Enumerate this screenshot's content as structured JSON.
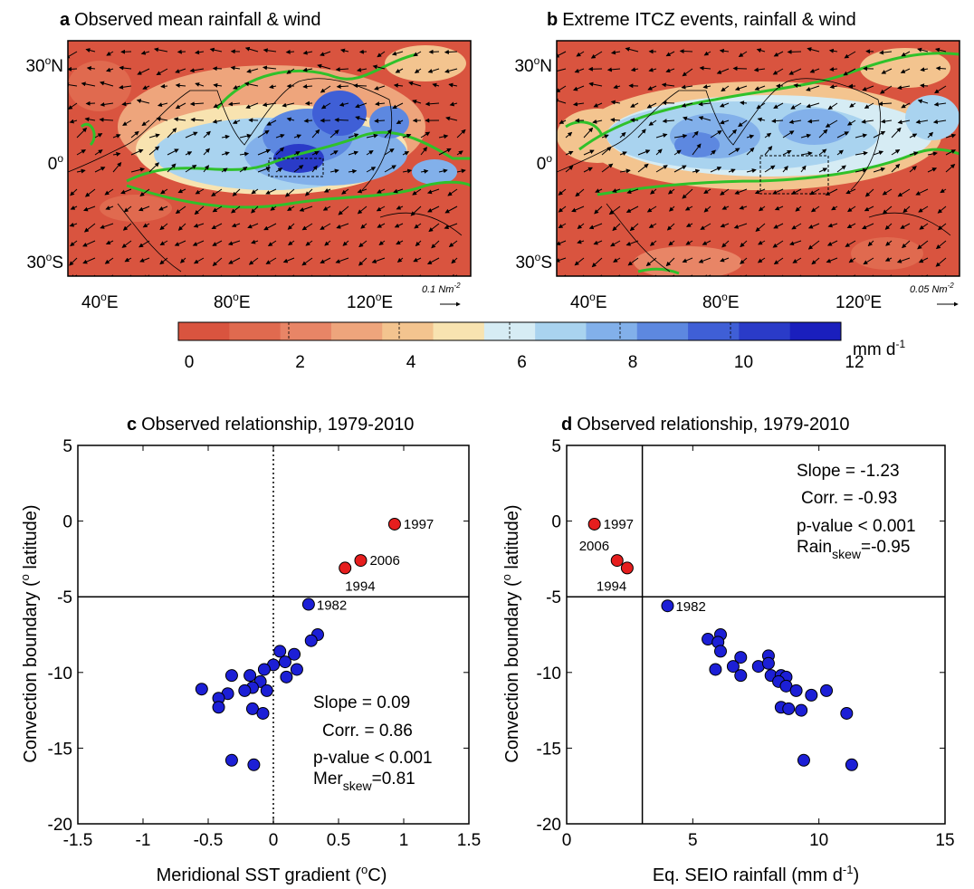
{
  "colors": {
    "rain_scale": [
      "#d9543f",
      "#e06a4f",
      "#e88566",
      "#eea57c",
      "#f3c48f",
      "#f8e3b0",
      "#d6ecf4",
      "#a9d3ef",
      "#82b0ea",
      "#5d88e0",
      "#3f5fd6",
      "#2a3bc8",
      "#1a1fbd"
    ],
    "green_contour": "#2fc12a",
    "red_point": "#e61e1e",
    "blue_point": "#1c1fd6"
  },
  "panel_a": {
    "letter": "a",
    "title": "Observed mean rainfall & wind",
    "lat_labels": [
      "30",
      "0",
      "30"
    ],
    "lat_suffix": [
      "N",
      "",
      "S"
    ],
    "lon_labels": [
      "40",
      "80",
      "120"
    ],
    "deg": "o",
    "east": "E",
    "ref_vector": "0.1 Nm",
    "ref_vector_exp": "-2"
  },
  "panel_b": {
    "letter": "b",
    "title": "Extreme ITCZ events, rainfall & wind",
    "lat_labels": [
      "30",
      "0",
      "30"
    ],
    "lat_suffix": [
      "N",
      "",
      "S"
    ],
    "lon_labels": [
      "40",
      "80",
      "120"
    ],
    "deg": "o",
    "east": "E",
    "ref_vector": "0.05 Nm",
    "ref_vector_exp": "-2"
  },
  "colorbar": {
    "ticks": [
      "0",
      "2",
      "4",
      "6",
      "8",
      "10",
      "12"
    ],
    "unit": "mm d",
    "unit_exp": "-1"
  },
  "chart_data": [
    {
      "type": "scatter",
      "panel": "c",
      "title": "Observed relationship, 1979-2010",
      "xlabel": "Meridional SST gradient (",
      "xlabel_sup": "o",
      "xlabel_end": "C)",
      "ylabel": "Convection boundary (",
      "ylabel_sup": "o",
      "ylabel_end": " latitude)",
      "xlim": [
        -1.5,
        1.5
      ],
      "ylim": [
        -20,
        5
      ],
      "xticks": [
        "-1.5",
        "-1",
        "-0.5",
        "0",
        "0.5",
        "1",
        "1.5"
      ],
      "yticks": [
        "-20",
        "-15",
        "-10",
        "-5",
        "0",
        "5"
      ],
      "hline": -5,
      "vline": 0,
      "vline_style": "dotted",
      "stats": {
        "slope": "Slope = 0.09",
        "corr": "Corr. = 0.86",
        "pvalue": "p-value < 0.001",
        "skew_name": "Mer",
        "skew_sub": "skew",
        "skew_val": "=0.81"
      },
      "extreme_points": [
        {
          "x": 0.93,
          "y": -0.2,
          "label": "1997"
        },
        {
          "x": 0.67,
          "y": -2.6,
          "label": "2006"
        },
        {
          "x": 0.55,
          "y": -3.1,
          "label": "1994"
        }
      ],
      "labeled_blue": [
        {
          "x": 0.27,
          "y": -5.5,
          "label": "1982"
        }
      ],
      "points": [
        [
          0.34,
          -7.5
        ],
        [
          0.29,
          -7.9
        ],
        [
          0.16,
          -8.8
        ],
        [
          0.05,
          -8.6
        ],
        [
          0.09,
          -9.3
        ],
        [
          0.0,
          -9.5
        ],
        [
          0.18,
          -9.8
        ],
        [
          0.1,
          -10.3
        ],
        [
          -0.07,
          -9.8
        ],
        [
          -0.18,
          -10.2
        ],
        [
          -0.32,
          -10.2
        ],
        [
          -0.1,
          -10.6
        ],
        [
          -0.16,
          -11.0
        ],
        [
          -0.05,
          -11.2
        ],
        [
          -0.22,
          -11.2
        ],
        [
          -0.35,
          -11.4
        ],
        [
          -0.42,
          -11.7
        ],
        [
          -0.55,
          -11.1
        ],
        [
          -0.42,
          -12.3
        ],
        [
          -0.16,
          -12.4
        ],
        [
          -0.08,
          -12.7
        ],
        [
          -0.32,
          -15.8
        ],
        [
          -0.15,
          -16.1
        ]
      ]
    },
    {
      "type": "scatter",
      "panel": "d",
      "title": "Observed relationship, 1979-2010",
      "xlabel": "Eq. SEIO rainfall (mm d",
      "xlabel_sup": "-1",
      "xlabel_end": ")",
      "ylabel": "Convection boundary (",
      "ylabel_sup": "o",
      "ylabel_end": " latitude)",
      "xlim": [
        0,
        15
      ],
      "ylim": [
        -20,
        5
      ],
      "xticks": [
        "0",
        "5",
        "10",
        "15"
      ],
      "yticks": [
        "-20",
        "-15",
        "-10",
        "-5",
        "0",
        "5"
      ],
      "hline": -5,
      "vline": 3,
      "vline_style": "solid",
      "stats": {
        "slope": "Slope = -1.23",
        "corr": "Corr. = -0.93",
        "pvalue": "p-value < 0.001",
        "skew_name": "Rain",
        "skew_sub": "skew",
        "skew_val": "=-0.95"
      },
      "extreme_points": [
        {
          "x": 1.1,
          "y": -0.2,
          "label": "1997"
        },
        {
          "x": 2.0,
          "y": -2.6,
          "label": "2006"
        },
        {
          "x": 2.4,
          "y": -3.1,
          "label": "1994"
        }
      ],
      "labeled_blue": [
        {
          "x": 4.0,
          "y": -5.6,
          "label": "1982"
        }
      ],
      "points": [
        [
          5.6,
          -7.8
        ],
        [
          6.1,
          -7.5
        ],
        [
          6.0,
          -8.0
        ],
        [
          6.1,
          -8.6
        ],
        [
          5.9,
          -9.8
        ],
        [
          6.9,
          -9.0
        ],
        [
          6.6,
          -9.6
        ],
        [
          6.9,
          -10.2
        ],
        [
          7.6,
          -9.6
        ],
        [
          8.0,
          -8.9
        ],
        [
          8.0,
          -9.4
        ],
        [
          8.1,
          -10.2
        ],
        [
          8.5,
          -10.2
        ],
        [
          8.7,
          -10.3
        ],
        [
          8.4,
          -10.6
        ],
        [
          8.7,
          -10.9
        ],
        [
          9.1,
          -11.2
        ],
        [
          9.7,
          -11.5
        ],
        [
          10.3,
          -11.2
        ],
        [
          8.5,
          -12.3
        ],
        [
          8.8,
          -12.4
        ],
        [
          9.3,
          -12.5
        ],
        [
          11.1,
          -12.7
        ],
        [
          9.4,
          -15.8
        ],
        [
          11.3,
          -16.1
        ]
      ]
    }
  ]
}
